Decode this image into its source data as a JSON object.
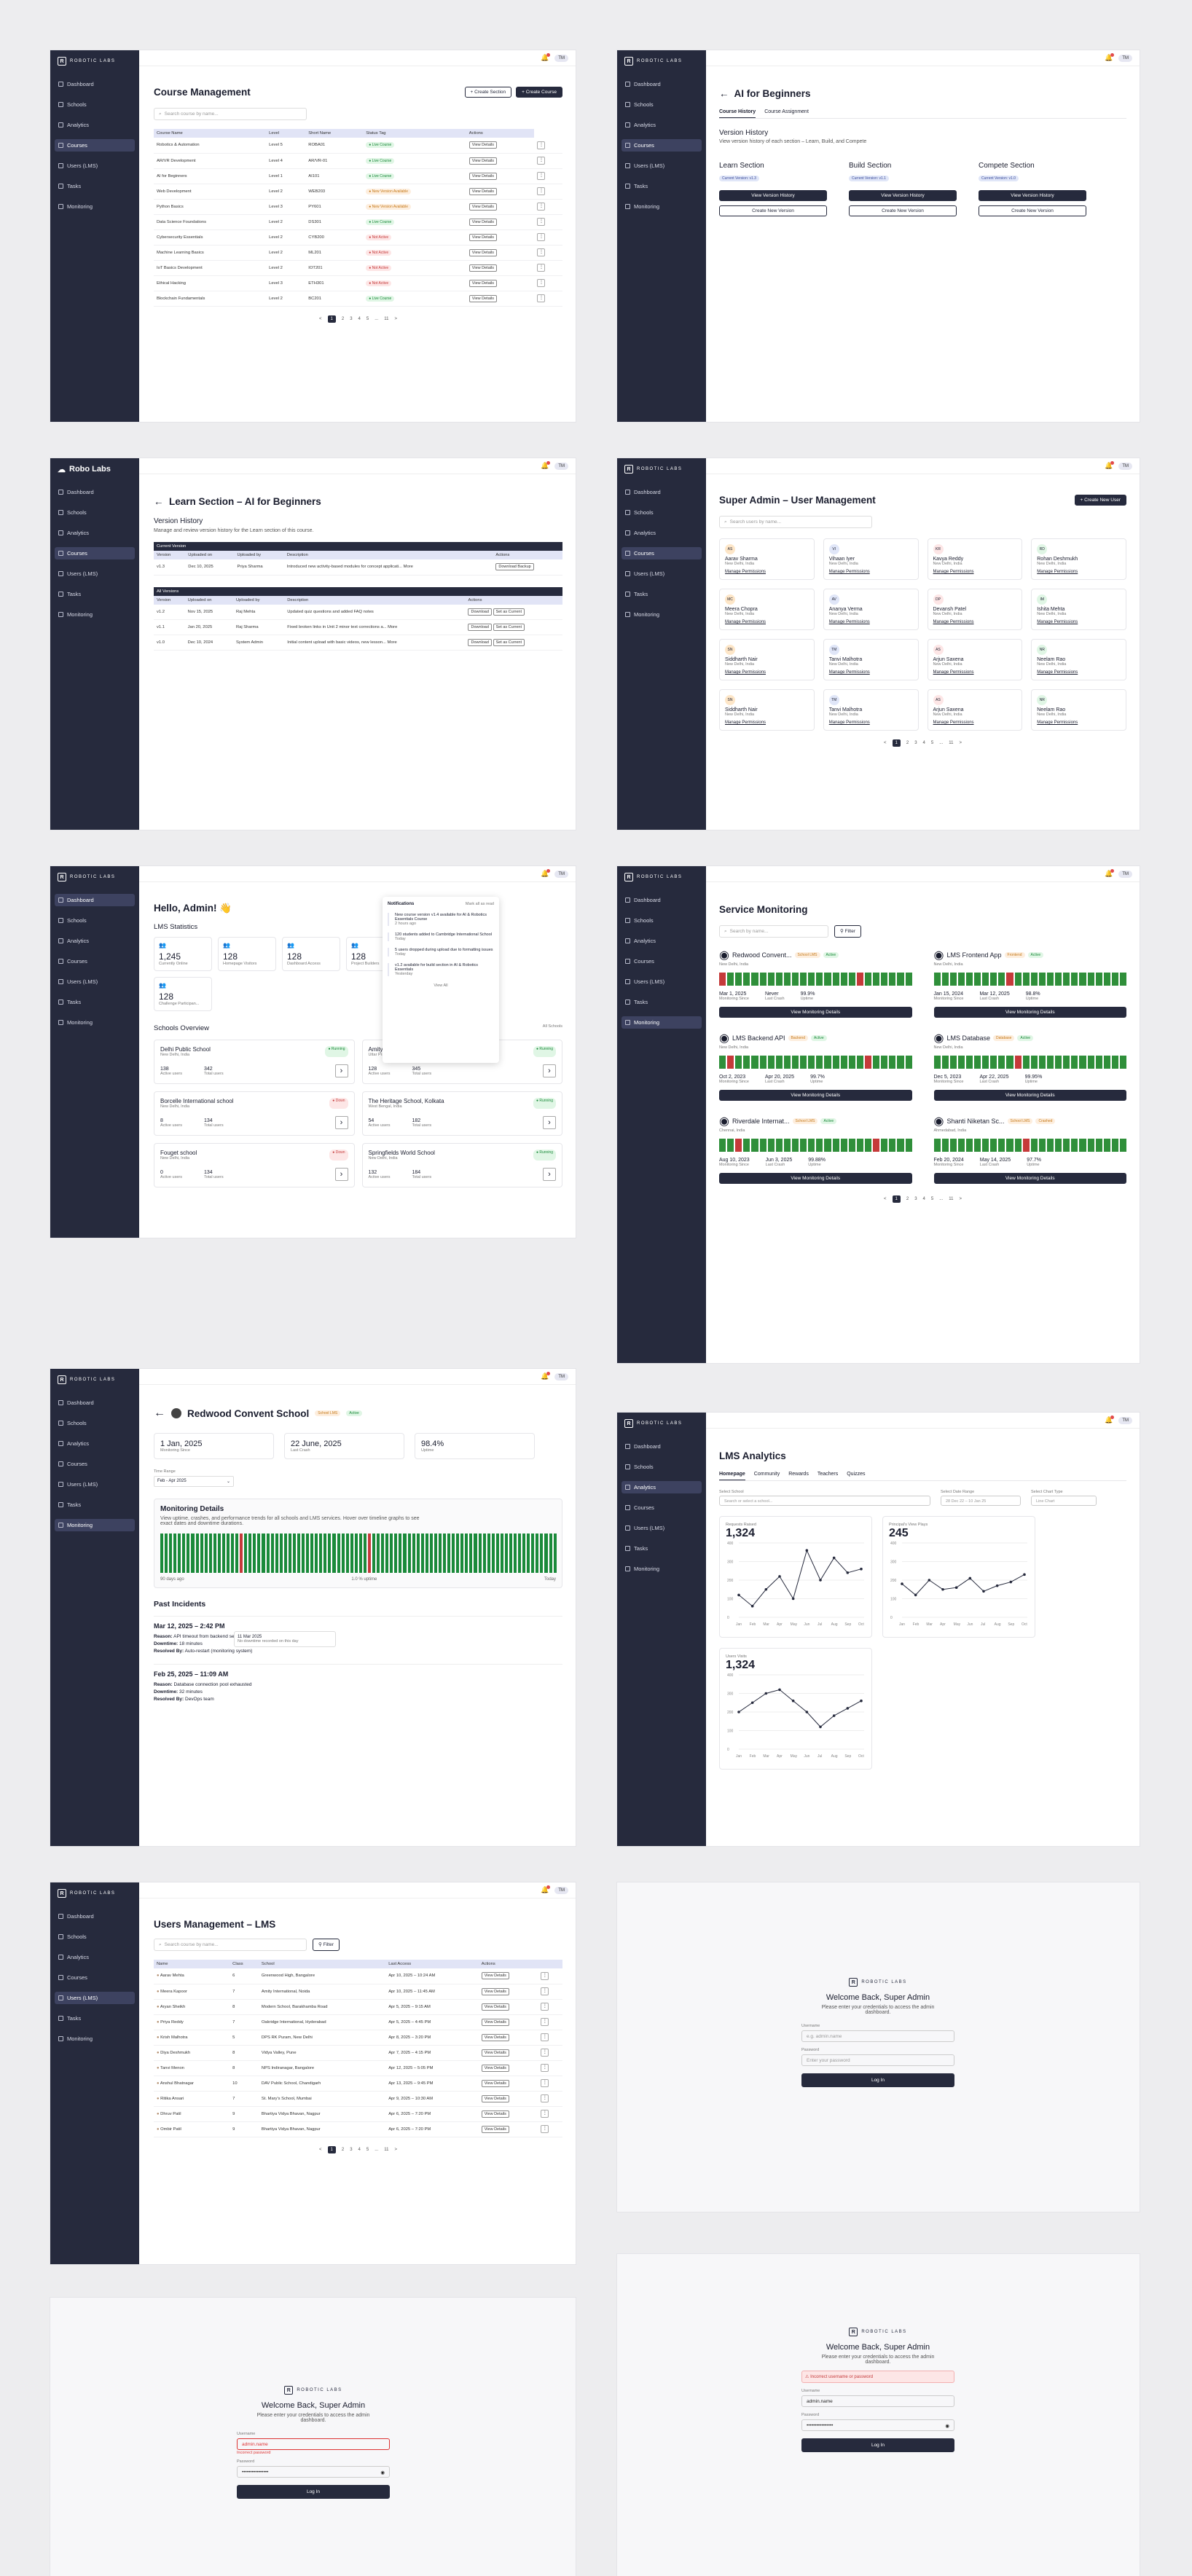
{
  "brand": "ROBOTIC LABS",
  "brand_alt": "Robo Labs",
  "user": "TM",
  "nav": [
    "Dashboard",
    "Schools",
    "Analytics",
    "Courses",
    "Users (LMS)",
    "Tasks",
    "Monitoring"
  ],
  "course": {
    "title": "Course Management",
    "search": "Search course by name...",
    "btn_section": "+ Create Section",
    "btn_course": "+ Create Course",
    "cols": [
      "Course Name",
      "Level",
      "Short Name",
      "Status Tag",
      "Actions"
    ],
    "rows": [
      [
        "Robotics & Automation",
        "Level 5",
        "ROBA01",
        "Live Course",
        "g"
      ],
      [
        "AR/VR Development",
        "Level 4",
        "AR/VR-01",
        "Live Course",
        "g"
      ],
      [
        "AI for Beginners",
        "Level 1",
        "AI101",
        "Live Course",
        "g"
      ],
      [
        "Web Development",
        "Level 2",
        "WEB203",
        "New Version Available",
        "o"
      ],
      [
        "Python Basics",
        "Level 3",
        "PY601",
        "New Version Available",
        "o"
      ],
      [
        "Data Science Foundations",
        "Level 2",
        "DS301",
        "Live Course",
        "g"
      ],
      [
        "Cybersecurity Essentials",
        "Level 2",
        "CYB200",
        "Not Active",
        "r"
      ],
      [
        "Machine Learning Basics",
        "Level 2",
        "ML201",
        "Not Active",
        "r"
      ],
      [
        "IoT Basics Development",
        "Level 2",
        "IOT201",
        "Not Active",
        "r"
      ],
      [
        "Ethical Hacking",
        "Level 3",
        "ETH301",
        "Not Active",
        "r"
      ],
      [
        "Blockchain Fundamentals",
        "Level 2",
        "BC201",
        "Live Course",
        "g"
      ]
    ],
    "view": "View Details"
  },
  "pages": [
    "1",
    "2",
    "3",
    "4",
    "5",
    "...",
    "11",
    ">"
  ],
  "ai": {
    "title": "AI for Beginners",
    "tab1": "Course History",
    "tab2": "Course Assignment",
    "vh": "Version History",
    "vh_sub": "View version history of each section – Learn, Build, and Compete",
    "sections": [
      {
        "name": "Learn Section",
        "ver": "Current Version: v1.3"
      },
      {
        "name": "Build Section",
        "ver": "Current Version: v1.1"
      },
      {
        "name": "Compete Section",
        "ver": "Current Version: v1.0"
      }
    ],
    "btn1": "View Version History",
    "btn2": "Create New Version"
  },
  "learn": {
    "title": "Learn Section – AI for Beginners",
    "vh": "Version History",
    "sub": "Manage and review version history for the Learn section of this course.",
    "cur": "Current Version",
    "all": "All Versions",
    "cols": [
      "Version",
      "Uploaded on",
      "Uploaded by",
      "Description",
      "Actions"
    ],
    "current": [
      "v1.3",
      "Dec 10, 2025",
      "Priya Sharma",
      "Introduced new activity-based modules for concept applicati... More",
      "Download Backup"
    ],
    "versions": [
      [
        "v1.2",
        "Nov 15, 2025",
        "Raj Mehta",
        "Updated quiz questions and added FAQ notes",
        "Download",
        "Set as Current"
      ],
      [
        "v1.1",
        "Jan 20, 2025",
        "Raj Sharma",
        "Fixed broken links in Unit 2 minor text corrections a... More",
        "Download",
        "Set as Current"
      ],
      [
        "v1.0",
        "Dec 10, 2024",
        "System Admin",
        "Initial content upload with basic videos, new lesson... More",
        "Download",
        "Set as Current"
      ]
    ]
  },
  "users": {
    "title": "Super Admin – User Management",
    "btn": "+ Create New User",
    "search": "Search users by name...",
    "perm": "Manage Permissions",
    "people": [
      [
        "AS",
        "Aarav Sharma",
        "New Delhi, India"
      ],
      [
        "VI",
        "Vihaan Iyer",
        "New Delhi, India"
      ],
      [
        "KR",
        "Kavya Reddy",
        "New Delhi, India"
      ],
      [
        "RD",
        "Rohan Deshmukh",
        "New Delhi, India"
      ],
      [
        "MC",
        "Meera Chopra",
        "New Delhi, India"
      ],
      [
        "AV",
        "Ananya Verma",
        "New Delhi, India"
      ],
      [
        "DP",
        "Devansh Patel",
        "New Delhi, India"
      ],
      [
        "IM",
        "Ishita Mehta",
        "New Delhi, India"
      ],
      [
        "SN",
        "Siddharth Nair",
        "New Delhi, India"
      ],
      [
        "TM",
        "Tanvi Malhotra",
        "New Delhi, India"
      ],
      [
        "AS",
        "Arjun Saxena",
        "New Delhi, India"
      ],
      [
        "NR",
        "Neelam Rao",
        "New Delhi, India"
      ],
      [
        "SN",
        "Siddharth Nair",
        "New Delhi, India"
      ],
      [
        "TM",
        "Tanvi Malhotra",
        "New Delhi, India"
      ],
      [
        "AS",
        "Arjun Saxena",
        "New Delhi, India"
      ],
      [
        "NR",
        "Neelam Rao",
        "New Delhi, India"
      ]
    ]
  },
  "dash": {
    "hello": "Hello, Admin! 👋",
    "stats_title": "LMS Statistics",
    "stats": [
      [
        "1,245",
        "Currently Online"
      ],
      [
        "128",
        "Homepage Visitors"
      ],
      [
        "128",
        "Dashboard Access"
      ],
      [
        "128",
        "Project Builders"
      ],
      [
        "128",
        "Challenge Participan..."
      ]
    ],
    "notif_title": "Notifications",
    "notif_mark": "Mark all as read",
    "notifs": [
      "New course version v1.4 available for AI & Robotics Essentials Course",
      "120 students added to Cambridge International School",
      "5 users dropped during upload due to formatting issues",
      "v1.2 available for build section in AI & Robotics Essentials"
    ],
    "notif_when": [
      "2 hours ago",
      "Today",
      "Today",
      "Yesterday"
    ],
    "view_all": "View All",
    "so": "Schools Overview",
    "all": "All Schools",
    "schools": [
      [
        "Delhi Public School",
        "New Delhi, India",
        "Running",
        "g",
        "138",
        "342"
      ],
      [
        "Amity International, Noida",
        "Uttar Pradesh, India",
        "Running",
        "g",
        "128",
        "345"
      ],
      [
        "Borcelle International school",
        "New Delhi, India",
        "Down",
        "r",
        "8",
        "134"
      ],
      [
        "The Heritage School, Kolkata",
        "West Bengal, India",
        "Running",
        "g",
        "54",
        "182"
      ],
      [
        "Fouget school",
        "New Delhi, India",
        "Down",
        "r",
        "0",
        "134"
      ],
      [
        "Springfields World School",
        "New Delhi, India",
        "Running",
        "g",
        "132",
        "184"
      ]
    ],
    "active": "Active users",
    "total": "Total users"
  },
  "mon": {
    "title": "Service Monitoring",
    "search": "Search by name...",
    "filter": "Filter",
    "lbl": [
      "Monitoring Since",
      "Last Crash",
      "Uptime"
    ],
    "btn": "View Monitoring Details",
    "svc": [
      [
        "Redwood Convent...",
        "New Delhi, India",
        "School LMS",
        "Active",
        "Mar 1, 2025",
        "Never",
        "99.9%"
      ],
      [
        "LMS Frontend App",
        "New Delhi, India",
        "Frontend",
        "Active",
        "Jan 15, 2024",
        "Mar 12, 2025",
        "98.8%"
      ],
      [
        "LMS Backend API",
        "New Delhi, India",
        "Backend",
        "Active",
        "Oct 2, 2023",
        "Apr 20, 2025",
        "99.7%"
      ],
      [
        "LMS Database",
        "New Delhi, India",
        "Database",
        "Active",
        "Dec 5, 2023",
        "Apr 22, 2025",
        "99.95%"
      ],
      [
        "Riverdale Internat...",
        "Chennai, India",
        "School LMS",
        "Active",
        "Aug 10, 2023",
        "Jun 3, 2025",
        "99.88%"
      ],
      [
        "Shanti Niketan Sc...",
        "Ahmedabad, India",
        "School LMS",
        "Crashed",
        "Feb 20, 2024",
        "May 14, 2025",
        "97.7%"
      ]
    ]
  },
  "red": {
    "title": "Redwood Convent School",
    "tag1": "School LMS",
    "tag2": "Active",
    "stats": [
      [
        "1 Jan, 2025",
        "Monitoring Since"
      ],
      [
        "22 June, 2025",
        "Last Crash"
      ],
      [
        "98.4%",
        "Uptime"
      ]
    ],
    "tr": "Time Range",
    "tr_val": "Feb - Apr 2025",
    "md": "Monitoring Details",
    "md_sub": "View uptime, crashes, and performance trends for all schools and LMS services. Hover over timeline graphs to see exact dates and downtime durations.",
    "tip_date": "11 Mar 2025",
    "tip": "No downtime recorded on this day",
    "ago": "90 days ago",
    "up": "1.0 % uptime",
    "today": "Today",
    "past": "Past Incidents",
    "inc": [
      [
        "Mar 12, 2025 – 2:42 PM",
        "API timeout from backend service",
        "18 minutes",
        "Auto-restart (monitoring system)"
      ],
      [
        "Feb 25, 2025 – 11:09 AM",
        "Database connection pool exhausted",
        "32 minutes",
        "DevOps team"
      ]
    ],
    "k1": "Reason:",
    "k2": "Downtime:",
    "k3": "Resolved By:"
  },
  "an": {
    "title": "LMS Analytics",
    "tabs": [
      "Homepage",
      "Community",
      "Rewards",
      "Teachers",
      "Quizzes"
    ],
    "f1": "Select School",
    "f1v": "Search or select a school...",
    "f2": "Select Date Range",
    "f2v": "28 Dec 22 – 10 Jan 25",
    "f3": "Select Chart Type",
    "f3v": "Line Chart",
    "c1": {
      "label": "Requests Raised",
      "val": "1,324"
    },
    "c2": {
      "label": "Principal's View Plays",
      "val": "245"
    },
    "c3": {
      "label": "Users Visits",
      "val": "1,324"
    }
  },
  "chart_data": [
    {
      "type": "line",
      "title": "Requests Raised",
      "categories": [
        "Jan",
        "Feb",
        "Mar",
        "Apr",
        "May",
        "Jun",
        "Jul",
        "Aug",
        "Sep",
        "Oct"
      ],
      "values": [
        120,
        60,
        150,
        220,
        100,
        360,
        200,
        320,
        240,
        260
      ],
      "ylim": [
        0,
        400
      ]
    },
    {
      "type": "line",
      "title": "Principal's View Plays",
      "categories": [
        "Jan",
        "Feb",
        "Mar",
        "Apr",
        "May",
        "Jun",
        "Jul",
        "Aug",
        "Sep",
        "Oct"
      ],
      "values": [
        180,
        120,
        200,
        150,
        160,
        210,
        140,
        170,
        190,
        230
      ],
      "ylim": [
        0,
        400
      ]
    },
    {
      "type": "line",
      "title": "Users Visits",
      "categories": [
        "Jan",
        "Feb",
        "Mar",
        "Apr",
        "May",
        "Jun",
        "Jul",
        "Aug",
        "Sep",
        "Oct"
      ],
      "values": [
        200,
        250,
        300,
        320,
        260,
        200,
        120,
        180,
        220,
        260
      ],
      "ylim": [
        0,
        400
      ]
    }
  ],
  "ul": {
    "title": "Users Management – LMS",
    "search": "Search course by name...",
    "filter": "Filter",
    "cols": [
      "Name",
      "Class",
      "School",
      "Last Access",
      "Actions"
    ],
    "rows": [
      [
        "Aarav Mehta",
        "6",
        "Greenwood High, Bangalore",
        "Apr 10, 2025 – 10:24 AM"
      ],
      [
        "Meera Kapoor",
        "7",
        "Amity International, Noida",
        "Apr 10, 2025 – 11:45 AM"
      ],
      [
        "Aryan Sheikh",
        "8",
        "Modern School, Barakhamba Road",
        "Apr 5, 2025 – 9:15 AM"
      ],
      [
        "Priya Reddy",
        "7",
        "Oakridge International, Hyderabad",
        "Apr 5, 2025 – 4:45 PM"
      ],
      [
        "Krish Malhotra",
        "5",
        "DPS RK Puram, New Delhi",
        "Apr 8, 2025 – 3:20 PM"
      ],
      [
        "Diya Deshmukh",
        "8",
        "Vidya Valley, Pune",
        "Apr 7, 2025 – 4:15 PM"
      ],
      [
        "Tanvi Menon",
        "8",
        "NPS Indiranagar, Bangalore",
        "Apr 12, 2025 – 5:05 PM"
      ],
      [
        "Anshul Bhatnagar",
        "10",
        "DAV Public School, Chandigarh",
        "Apr 13, 2025 – 9:45 PM"
      ],
      [
        "Ritika Ansari",
        "7",
        "St. Mary's School, Mumbai",
        "Apr 9, 2025 – 10:30 AM"
      ],
      [
        "Dhruv Patil",
        "9",
        "Bhartiya Vidya Bhavan, Nagpur",
        "Apr 6, 2025 – 7:20 PM"
      ],
      [
        "Ombir Patil",
        "9",
        "Bhartiya Vidya Bhavan, Nagpur",
        "Apr 6, 2025 – 7:20 PM"
      ]
    ]
  },
  "login": {
    "title": "Welcome Back, Super Admin",
    "sub": "Please enter your credentials to access the admin dashboard.",
    "u": "Username",
    "p": "Password",
    "u_ph": "e.g. admin.name",
    "p_ph": "Enter your password",
    "btn": "Log In",
    "err": "Incorrect username or password",
    "u_val": "admin.name",
    "u_err": "admin.name",
    "req": "Incorrect password",
    "dots": "••••••••••••••••"
  }
}
